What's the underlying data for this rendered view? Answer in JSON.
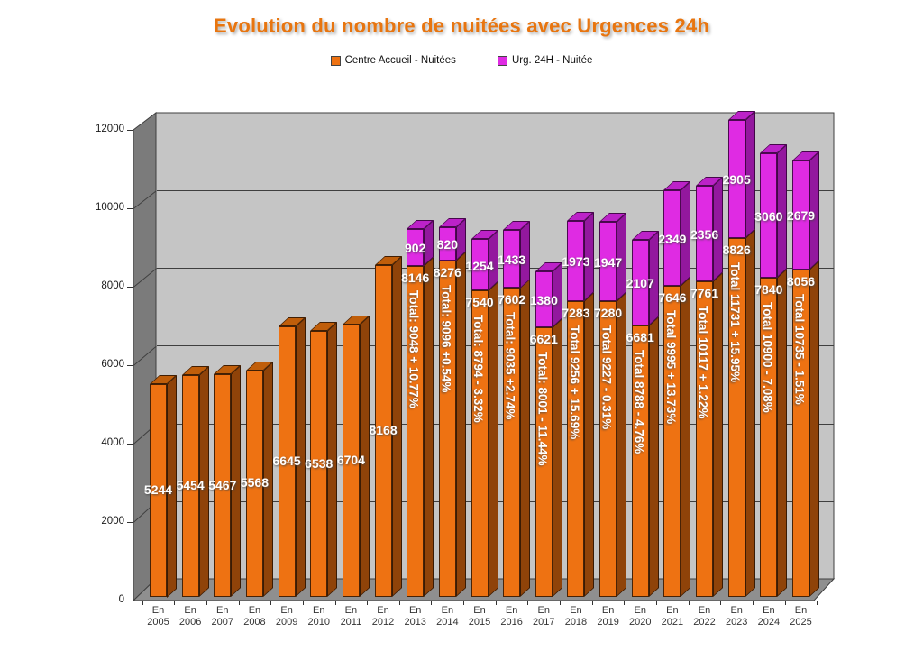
{
  "title": "Evolution du nombre de nuitées avec Urgences 24h",
  "title_color": "#E8750F",
  "legend": [
    {
      "label": "Centre Accueil - Nuitées",
      "color": "#EE7212"
    },
    {
      "label": "Urg. 24H - Nuitée",
      "color": "#DF2BE3"
    }
  ],
  "colors": {
    "centre": {
      "front": "#EE7212",
      "side": "#8F4309",
      "top": "#C05E0A"
    },
    "urg": {
      "front": "#DF2BE3",
      "side": "#93189E",
      "top": "#BC22C8"
    },
    "wall_back": "#C5C5C5",
    "wall_side": "#7B7B7B",
    "floor": "#8F8F8F",
    "gridline": "#3F3F3F"
  },
  "y_axis": {
    "ticks": [
      0,
      2000,
      4000,
      6000,
      8000,
      10000,
      12000
    ]
  },
  "chart_data": {
    "type": "bar",
    "stacked": true,
    "style": "3d-column",
    "title": "Evolution du nombre de nuitées avec Urgences 24h",
    "xlabel": "",
    "ylabel": "",
    "ylim": [
      0,
      12000
    ],
    "ytick_step": 2000,
    "grid": true,
    "legend_position": "top",
    "categories": [
      "En 2005",
      "En 2006",
      "En 2007",
      "En 2008",
      "En 2009",
      "En 2010",
      "En 2011",
      "En 2012",
      "En 2013",
      "En 2014",
      "En 2015",
      "En 2016",
      "En 2017",
      "En 2018",
      "En 2019",
      "En 2020",
      "En 2021",
      "En 2022",
      "En 2023",
      "En 2024",
      "En 2025"
    ],
    "series": [
      {
        "name": "Centre Accueil - Nuitées",
        "color": "#EE7212",
        "values": [
          5244,
          5454,
          5467,
          5568,
          6645,
          6538,
          6704,
          8168,
          8146,
          8276,
          7540,
          7602,
          6621,
          7283,
          7280,
          6681,
          7646,
          7761,
          8826,
          7840,
          8056
        ]
      },
      {
        "name": "Urg. 24H - Nuitée",
        "color": "#DF2BE3",
        "values": [
          null,
          null,
          null,
          null,
          null,
          null,
          null,
          null,
          902,
          820,
          1254,
          1433,
          1380,
          1973,
          1947,
          2107,
          2349,
          2356,
          2905,
          3060,
          2679
        ]
      }
    ],
    "total_labels": [
      null,
      null,
      null,
      null,
      null,
      null,
      null,
      null,
      "Total: 9048 + 10.77%",
      "Total: 9096 +0.54%",
      "Total: 8794 - 3.32%",
      "Total: 9035 +2.74%",
      "Total: 8001 - 11.44%",
      "Total 9256 + 15.69%",
      "Total 9227 - 0.31%",
      "Total 8788 - 4.76%",
      "Total 9995 + 13.73%",
      "Total 10117 + 1.22%",
      "Total 11731 + 15.95%",
      "Total 10900 - 7.08%",
      "Total 10735 - 1.51%"
    ]
  }
}
